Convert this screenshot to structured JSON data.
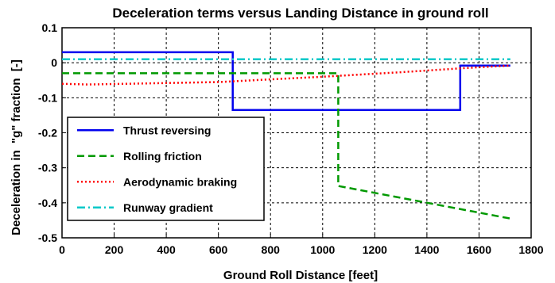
{
  "chart_data": {
    "type": "line",
    "title": "Deceleration terms versus Landing Distance in ground roll",
    "xlabel": "Ground Roll Distance [feet]",
    "ylabel": "Deceleration in  \"g\" fraction  [-]",
    "xlim": [
      0,
      1800
    ],
    "ylim": [
      -0.5,
      0.1
    ],
    "xticks": [
      0,
      200,
      400,
      600,
      800,
      1000,
      1200,
      1400,
      1600,
      1800
    ],
    "yticks": [
      0.1,
      0,
      -0.1,
      -0.2,
      -0.3,
      -0.4,
      -0.5
    ],
    "xtick_labels": [
      "0",
      "200",
      "400",
      "600",
      "800",
      "1000",
      "1200",
      "1400",
      "1600",
      "1800"
    ],
    "ytick_labels": [
      "0.1",
      "0",
      "-0.1",
      "-0.2",
      "-0.3",
      "-0.4",
      "-0.5"
    ],
    "grid": true,
    "legend_position": "lower-left",
    "series": [
      {
        "name": "Thrust reversing",
        "color": "#0000ee",
        "style": "solid",
        "x": [
          0,
          655,
          655,
          1528,
          1528,
          1720
        ],
        "y": [
          0.03,
          0.03,
          -0.135,
          -0.135,
          -0.008,
          -0.008
        ]
      },
      {
        "name": "Rolling friction",
        "color": "#009900",
        "style": "dashed",
        "x": [
          0,
          1060,
          1060,
          1720
        ],
        "y": [
          -0.03,
          -0.03,
          -0.352,
          -0.445
        ]
      },
      {
        "name": "Aerodynamic braking",
        "color": "#ff0000",
        "style": "dotted",
        "x": [
          0,
          100,
          600,
          1000,
          1300,
          1550,
          1720
        ],
        "y": [
          -0.06,
          -0.062,
          -0.055,
          -0.04,
          -0.027,
          -0.015,
          -0.008
        ]
      },
      {
        "name": "Runway gradient",
        "color": "#00c8c8",
        "style": "dashdot",
        "x": [
          0,
          1720
        ],
        "y": [
          0.01,
          0.01
        ]
      }
    ]
  }
}
